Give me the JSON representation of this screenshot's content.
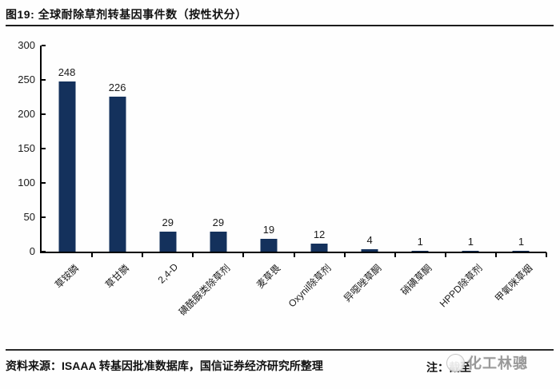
{
  "title": "图19: 全球耐除草剂转基因事件数（按性状分）",
  "chart_data": {
    "type": "bar",
    "title": "全球耐除草剂转基因事件数（按性状分）",
    "categories": [
      "草铵膦",
      "草甘膦",
      "2,4-D",
      "磺酰脲类除草剂",
      "麦草畏",
      "Oxynil除草剂",
      "异噁唑草酮",
      "硝磺草酮",
      "HPPD除草剂",
      "甲氧咪草烟"
    ],
    "values": [
      248,
      226,
      29,
      29,
      19,
      12,
      4,
      1,
      1,
      1
    ],
    "xlabel": "",
    "ylabel": "",
    "ylim": [
      0,
      300
    ],
    "yticks": [
      0,
      50,
      100,
      150,
      200,
      250,
      300
    ],
    "bar_color": "#14315c",
    "grid": false,
    "legend": false,
    "data_labels": true,
    "x_label_rotation_deg": 45
  },
  "footer": {
    "source": "资料来源：ISAAA 转基因批准数据库，国信证券经济研究所整理",
    "note_label": "注：截至",
    "watermark_text": "化工林骢"
  },
  "colors": {
    "bar": "#14315c",
    "axis": "#000000",
    "rule": "#1c1c1c",
    "text": "#111111",
    "watermark": "#8f8f8f"
  }
}
